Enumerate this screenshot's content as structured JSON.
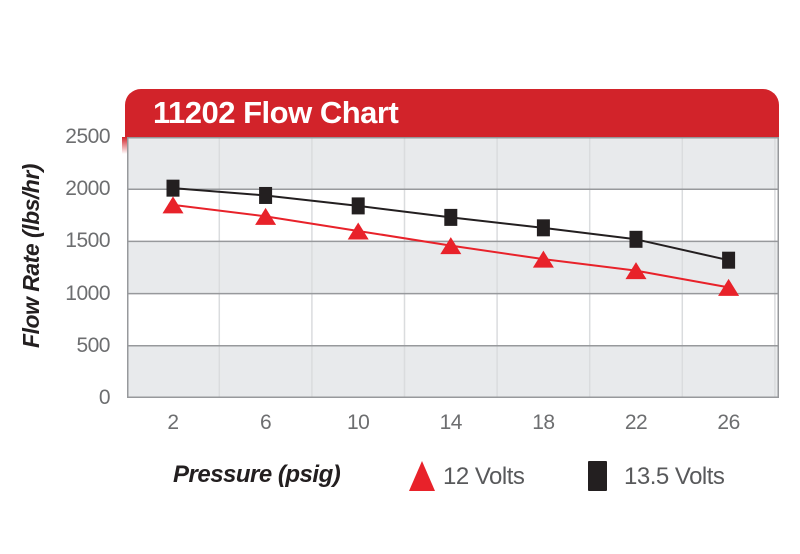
{
  "chart": {
    "title": "11202 Flow Chart",
    "y_axis_title": "Flow Rate (lbs/hr)",
    "x_axis_title": "Pressure (psig)"
  },
  "legend": {
    "items": [
      {
        "label": "12 Volts",
        "marker": "triangle",
        "color": "#E8222A"
      },
      {
        "label": "13.5 Volts",
        "marker": "square",
        "color": "#231F20"
      }
    ]
  },
  "chart_data": {
    "type": "line",
    "title": "11202 Flow Chart",
    "xlabel": "Pressure (psig)",
    "ylabel": "Flow Rate (lbs/hr)",
    "x": [
      2,
      6,
      10,
      14,
      18,
      22,
      26
    ],
    "xticks": [
      "2",
      "6",
      "10",
      "14",
      "18",
      "22",
      "26"
    ],
    "yticks": [
      "0",
      "500",
      "1000",
      "1500",
      "2000",
      "2500"
    ],
    "ylim": [
      0,
      2500
    ],
    "series": [
      {
        "name": "12 Volts",
        "marker": "triangle",
        "color": "#E8222A",
        "values": [
          1850,
          1740,
          1600,
          1460,
          1330,
          1220,
          1060
        ]
      },
      {
        "name": "13.5 Volts",
        "marker": "square",
        "color": "#231F20",
        "values": [
          2010,
          1940,
          1840,
          1730,
          1630,
          1520,
          1320
        ]
      }
    ],
    "grid": {
      "horizontal": true,
      "vertical": true,
      "bands": "alternating gray/white"
    },
    "legend_position": "bottom"
  },
  "colors": {
    "banner_red": "#D2232A",
    "series_red": "#E8222A",
    "series_black": "#231F20",
    "band_gray": "#E8EAEC",
    "gridline_gray": "#97999C",
    "vertical_gridline": "#DADCDE",
    "tick_text": "#6D6E70",
    "legend_text": "#58595B"
  }
}
